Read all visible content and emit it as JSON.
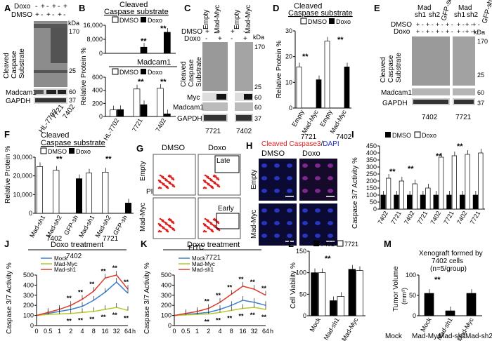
{
  "panels": {
    "A": {
      "label": "A",
      "doxo": "Doxo",
      "dmso": "DMSO",
      "doxo_signs": [
        "-",
        "+",
        "-",
        "+",
        "-",
        "+"
      ],
      "dmso_signs": [
        "+",
        "-",
        "+",
        "-",
        "+",
        "-"
      ],
      "kda": "kDa",
      "markers": [
        "170",
        "25",
        "60",
        "37"
      ],
      "row_labels": [
        "Cleaved",
        "Caspase",
        "Substrate",
        "Madcam1",
        "GAPDH"
      ],
      "cells": [
        "HL-7702",
        "7721",
        "7402"
      ]
    },
    "B": {
      "label": "B",
      "title1": "Cleaved",
      "title2": "Caspase substrate",
      "legend": [
        "DMSO",
        "Doxo"
      ],
      "title_lower": "Madcam1",
      "ylabel": "Relative Protein %",
      "yticks_upper": [
        "16,000",
        "8,000",
        "0"
      ],
      "yticks_lower": [
        "600",
        "400",
        "200",
        "0"
      ],
      "sig": "**",
      "cells": [
        "HL-7702",
        "7721",
        "7402"
      ]
    },
    "C": {
      "label": "C",
      "cols": [
        "Empty",
        "Mad-Myc",
        "Empty",
        "Mad-Myc"
      ],
      "dmso": "DMSO",
      "doxo": "Doxo",
      "dmso_signs": [
        "+",
        "-",
        "+",
        "-"
      ],
      "doxo_signs": [
        "-",
        "+",
        "-",
        "+"
      ],
      "kda": "kDa",
      "markers": [
        "170",
        "25",
        "60",
        "60",
        "37"
      ],
      "row_labels": [
        "Cleaved",
        "Caspase",
        "Substrate",
        "Myc",
        "Madcam1",
        "GAPDH"
      ],
      "cells": [
        "7721",
        "7402"
      ]
    },
    "D": {
      "label": "D",
      "title1": "Cleaved",
      "title2": "Caspase substrate",
      "legend": [
        "DMSO",
        "Doxo"
      ],
      "ylabel": "Relative Protein %",
      "yticks": [
        "30",
        "20",
        "10",
        "0"
      ],
      "sig": "**",
      "xcats": [
        "Empty",
        "Mad-Myc",
        "Empty",
        "Mad-Myc"
      ],
      "cells": [
        "7721",
        "7402"
      ]
    },
    "E": {
      "label": "E",
      "cols_left": [
        "Mad",
        "sh1",
        "sh2",
        "GFP-sh"
      ],
      "cols_right": [
        "Mad",
        "sh1",
        "sh2",
        "GFP-sh"
      ],
      "dmso": "DMSO",
      "doxo": "Doxo",
      "signs": "+ -",
      "kda": "kDa",
      "markers": [
        "170",
        "25",
        "60",
        "37"
      ],
      "row_labels": [
        "Cleaved",
        "Caspase",
        "Substrate",
        "Madcam1",
        "GAPDH"
      ],
      "cells": [
        "7402",
        "7721"
      ]
    },
    "F": {
      "label": "F",
      "title1": "Cleaved",
      "title2": "Caspase substrate",
      "legend": [
        "DMSO",
        "Doxo"
      ],
      "ylabel": "Relative Protein %",
      "yticks": [
        "30,000",
        "20,000",
        "10,000",
        "0"
      ],
      "sig": "**",
      "xcats": [
        "Mad-sh1",
        "Mad-sh2",
        "GFP-sh",
        "Mad-sh1",
        "Mad-sh2",
        "GFP-sh"
      ],
      "cells": [
        "7402",
        "7721"
      ]
    },
    "G": {
      "label": "G",
      "cols": [
        "DMSO",
        "Doxo"
      ],
      "rows": [
        "Empty",
        "Mad-Myc"
      ],
      "ylabel": "PI",
      "xlabel": "FITC",
      "gates": [
        "Late",
        "Early"
      ]
    },
    "H": {
      "label": "H",
      "title_red": "Cleaved Caspase3",
      "title_sep": "/",
      "title_blue": "DAPI",
      "cols": [
        "DMSO",
        "Doxo"
      ],
      "rows": [
        "Empty",
        "Mad-Myc"
      ]
    },
    "I": {
      "label": "I",
      "legend": [
        "DMSO",
        "Doxo"
      ],
      "ylabel": "Caspase 3/7 Activity %",
      "yticks": [
        "450",
        "400",
        "350",
        "300",
        "250",
        "200",
        "150",
        "100",
        "50",
        "0"
      ],
      "sig": "**",
      "xcats": [
        "7402",
        "7721",
        "7402",
        "7721",
        "7402",
        "7721",
        "7402",
        "7721"
      ],
      "groups": [
        "Mock",
        "Mad-Myc",
        "Mad-sh1",
        "Mad-sh2"
      ]
    },
    "J": {
      "label": "J",
      "title": "Doxo treatment",
      "legend": [
        "Mock",
        "Mad-Myc",
        "Mad-sh1"
      ],
      "cell": "7402",
      "ylabel": "Caspase 3/7 Activity %",
      "yticks": [
        "500",
        "400",
        "300",
        "200",
        "100",
        "0"
      ],
      "xticks": [
        "0",
        "0.5",
        "1",
        "2",
        "4",
        "8",
        "16",
        "32",
        "64"
      ],
      "xunit": "h",
      "sig": "**"
    },
    "K": {
      "label": "K",
      "title": "Doxo treatment",
      "legend": [
        "Mock",
        "Mad-Myc",
        "Mad-sh1"
      ],
      "cell": "7721",
      "ylabel": "Caspase 3/7 Activity %",
      "yticks": [
        "500",
        "400",
        "300",
        "200",
        "100",
        "0"
      ],
      "xticks": [
        "0",
        "0.5",
        "1",
        "2",
        "4",
        "8",
        "16",
        "32",
        "64"
      ],
      "xunit": "h",
      "sig": "**"
    },
    "L": {
      "label": "L",
      "legend": [
        "7402",
        "7721"
      ],
      "ylabel": "Cell Viability %",
      "yticks": [
        "150",
        "100",
        "50",
        "0"
      ],
      "xcats": [
        "Mock",
        "Mad-sh1",
        "Mad-Myc"
      ],
      "sig": "**"
    },
    "M": {
      "label": "M",
      "title1": "Xenograft formed by",
      "title2": "7402 cells",
      "title3": "(n=5/group)",
      "ylabel": "Tumor Volume",
      "yunit": "(mm³)",
      "yticks": [
        "100",
        "50",
        "0"
      ],
      "xcats": [
        "Mock",
        "Mad-sh1",
        "Mad-Myc"
      ],
      "sig": "**"
    }
  },
  "colors": {
    "mock": "#3a7fd0",
    "mad_myc": "#b8c92a",
    "mad_sh1": "#e03a2a",
    "red_title": "#e02020",
    "blue_title": "#2030c0"
  },
  "chart_data": [
    {
      "panel": "B-upper",
      "type": "bar",
      "categories": [
        "HL-7702",
        "7721",
        "7402"
      ],
      "series": [
        {
          "name": "DMSO",
          "values": [
            0,
            0,
            0
          ]
        },
        {
          "name": "Doxo",
          "values": [
            0,
            3500,
            12000
          ]
        }
      ],
      "ylim": [
        0,
        16000
      ]
    },
    {
      "panel": "B-lower",
      "type": "bar",
      "categories": [
        "HL-7702",
        "7721",
        "7402"
      ],
      "series": [
        {
          "name": "DMSO",
          "values": [
            100,
            420,
            430
          ]
        },
        {
          "name": "Doxo",
          "values": [
            105,
            180,
            40
          ]
        }
      ],
      "ylim": [
        0,
        600
      ]
    },
    {
      "panel": "D",
      "type": "bar",
      "categories": [
        "Empty",
        "Mad-Myc",
        "Empty",
        "Mad-Myc"
      ],
      "series": [
        {
          "name": "DMSO",
          "values": [
            16,
            0,
            26,
            0
          ]
        },
        {
          "name": "Doxo",
          "values": [
            0,
            11,
            0,
            16
          ]
        }
      ],
      "ylim": [
        0,
        30
      ]
    },
    {
      "panel": "F",
      "type": "bar",
      "categories": [
        "Mad-sh1",
        "Mad-sh2",
        "GFP-sh",
        "Mad-sh1",
        "Mad-sh2",
        "GFP-sh"
      ],
      "series": [
        {
          "name": "DMSO",
          "values": [
            25000,
            23000,
            0,
            21500,
            22000,
            0
          ]
        },
        {
          "name": "Doxo",
          "values": [
            0,
            0,
            18500,
            0,
            0,
            5500
          ]
        }
      ],
      "ylim": [
        0,
        30000
      ]
    },
    {
      "panel": "I",
      "type": "bar",
      "categories": [
        "7402",
        "7721",
        "7402",
        "7721",
        "7402",
        "7721",
        "7402",
        "7721"
      ],
      "series": [
        {
          "name": "DMSO",
          "values": [
            100,
            100,
            100,
            100,
            100,
            100,
            100,
            100
          ]
        },
        {
          "name": "Doxo",
          "values": [
            220,
            200,
            180,
            150,
            370,
            380,
            390,
            400
          ]
        }
      ],
      "ylim": [
        0,
        450
      ]
    },
    {
      "panel": "J",
      "type": "line",
      "x": [
        "0",
        "0.5",
        "1",
        "2",
        "4",
        "8",
        "16",
        "32",
        "64"
      ],
      "series": [
        {
          "name": "Mock",
          "values": [
            100,
            120,
            140,
            160,
            190,
            250,
            330,
            430,
            320
          ]
        },
        {
          "name": "Mad-Myc",
          "values": [
            100,
            110,
            115,
            120,
            130,
            140,
            160,
            180,
            150
          ]
        },
        {
          "name": "Mad-sh1",
          "values": [
            100,
            130,
            160,
            200,
            260,
            340,
            470,
            500,
            360
          ]
        }
      ],
      "ylim": [
        0,
        500
      ]
    },
    {
      "panel": "K",
      "type": "line",
      "x": [
        "0",
        "0.5",
        "1",
        "2",
        "4",
        "8",
        "16",
        "32",
        "64"
      ],
      "series": [
        {
          "name": "Mock",
          "values": [
            100,
            110,
            120,
            130,
            160,
            200,
            250,
            230,
            200
          ]
        },
        {
          "name": "Mad-Myc",
          "values": [
            100,
            105,
            110,
            115,
            130,
            150,
            170,
            180,
            160
          ]
        },
        {
          "name": "Mad-sh1",
          "values": [
            100,
            120,
            140,
            170,
            230,
            310,
            390,
            360,
            300
          ]
        }
      ],
      "ylim": [
        0,
        500
      ]
    },
    {
      "panel": "L",
      "type": "bar",
      "categories": [
        "Mock",
        "Mad-sh1",
        "Mad-Myc"
      ],
      "series": [
        {
          "name": "7402",
          "values": [
            100,
            35,
            108
          ]
        },
        {
          "name": "7721",
          "values": [
            100,
            45,
            105
          ]
        }
      ],
      "ylim": [
        0,
        150
      ]
    },
    {
      "panel": "M",
      "type": "bar",
      "categories": [
        "Mock",
        "Mad-sh1",
        "Mad-Myc"
      ],
      "series": [
        {
          "name": "Tumor Volume",
          "values": [
            55,
            12,
            55
          ]
        }
      ],
      "ylim": [
        0,
        100
      ]
    }
  ]
}
